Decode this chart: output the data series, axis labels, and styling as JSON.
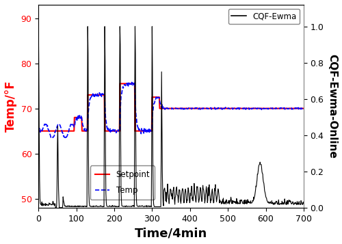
{
  "xlabel": "Time/4min",
  "ylabel_left": "Temp/°F",
  "ylabel_right": "CQF-Ewma-Online",
  "xlim": [
    0,
    700
  ],
  "ylim_left": [
    48,
    93
  ],
  "ylim_right": [
    0,
    1.12
  ],
  "yticks_left": [
    50,
    60,
    70,
    80,
    90
  ],
  "yticks_right": [
    0,
    0.2,
    0.4,
    0.6,
    0.8,
    1
  ],
  "xticks": [
    0,
    100,
    200,
    300,
    400,
    500,
    600,
    700
  ],
  "setpoint_color": "#FF0000",
  "temp_color": "#0000FF",
  "cqf_color": "#000000",
  "xlabel_fontsize": 13,
  "ylabel_fontsize": 12
}
